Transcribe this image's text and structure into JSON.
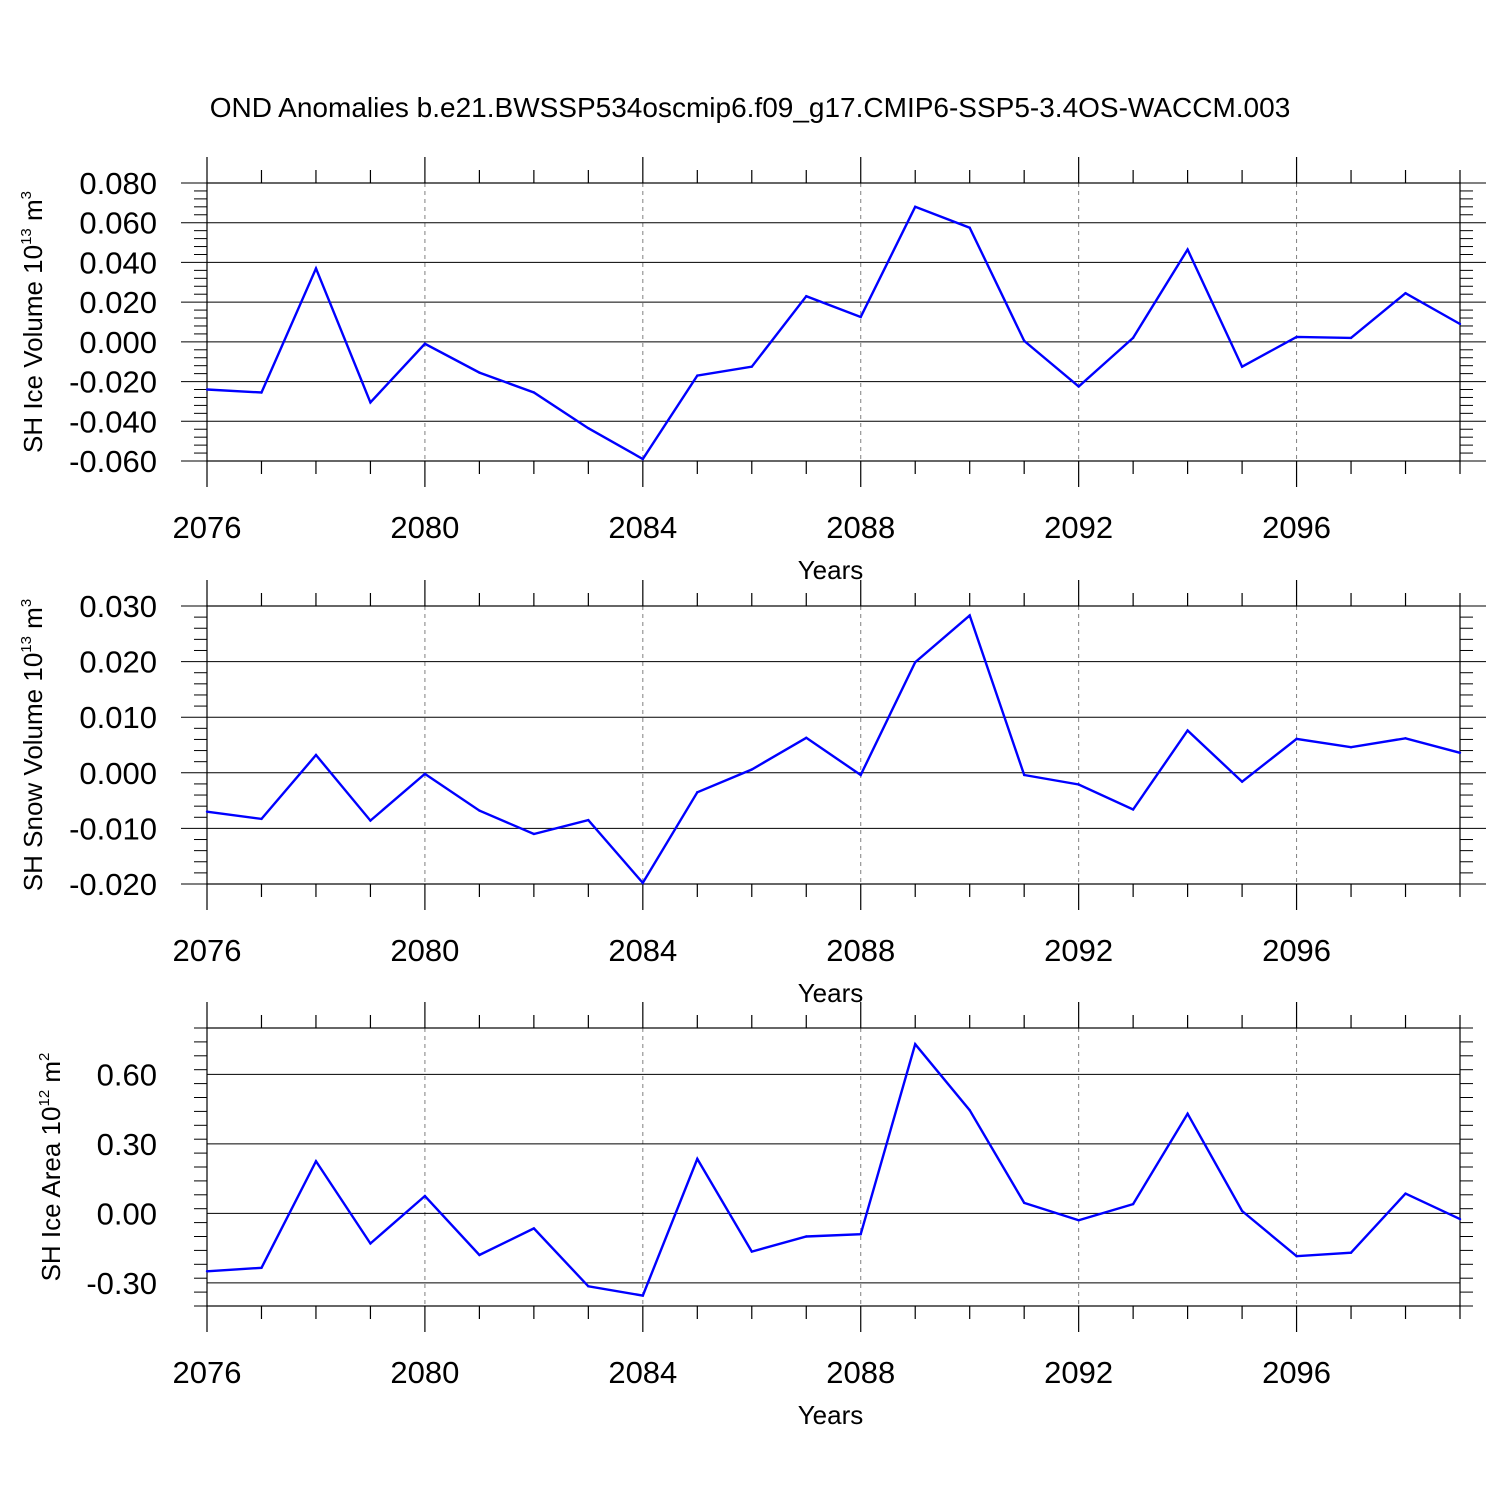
{
  "title": "OND Anomalies b.e21.BWSSP534oscmip6.f09_g17.CMIP6-SSP5-3.4OS-WACCM.003",
  "colors": {
    "line": "#0000ff",
    "axis": "#000000",
    "grid": "#808080"
  },
  "chart_data": [
    {
      "type": "line",
      "title": "",
      "xlabel": "Years",
      "ylabel": {
        "text": "SH Ice Volume 10",
        "sup": "13",
        "unit": " m",
        "unit_sup": "3"
      },
      "x": [
        2076,
        2077,
        2078,
        2079,
        2080,
        2081,
        2082,
        2083,
        2084,
        2085,
        2086,
        2087,
        2088,
        2089,
        2090,
        2091,
        2092,
        2093,
        2094,
        2095,
        2096,
        2097,
        2098,
        2099
      ],
      "values": [
        -0.024,
        -0.0255,
        0.037,
        -0.0305,
        -0.001,
        -0.0155,
        -0.0255,
        -0.0435,
        -0.059,
        -0.017,
        -0.0125,
        0.023,
        0.0125,
        0.068,
        0.0575,
        0.0005,
        -0.0225,
        0.002,
        0.0465,
        -0.0125,
        0.0025,
        0.002,
        0.0245,
        0.009
      ],
      "xlim": [
        2076,
        2099
      ],
      "ylim": [
        -0.06,
        0.08
      ],
      "xticks": [
        2076,
        2080,
        2084,
        2088,
        2092,
        2096
      ],
      "xtick_labels": [
        "2076",
        "2080",
        "2084",
        "2088",
        "2092",
        "2096"
      ],
      "yticks": [
        -0.06,
        -0.04,
        -0.02,
        0.0,
        0.02,
        0.04,
        0.06,
        0.08
      ],
      "ytick_labels": [
        "-0.060",
        "-0.040",
        "-0.020",
        "0.000",
        "0.020",
        "0.040",
        "0.060",
        "0.080"
      ],
      "grid": "x-dashed"
    },
    {
      "type": "line",
      "title": "",
      "xlabel": "Years",
      "ylabel": {
        "text": "SH Snow Volume 10",
        "sup": "13",
        "unit": " m",
        "unit_sup": "3"
      },
      "x": [
        2076,
        2077,
        2078,
        2079,
        2080,
        2081,
        2082,
        2083,
        2084,
        2085,
        2086,
        2087,
        2088,
        2089,
        2090,
        2091,
        2092,
        2093,
        2094,
        2095,
        2096,
        2097,
        2098,
        2099
      ],
      "values": [
        -0.007,
        -0.0083,
        0.0032,
        -0.0086,
        -0.0002,
        -0.0068,
        -0.011,
        -0.0085,
        -0.0198,
        -0.0035,
        0.0006,
        0.0063,
        -0.0004,
        0.0199,
        0.0283,
        -0.0004,
        -0.0021,
        -0.0066,
        0.0076,
        -0.0016,
        0.0061,
        0.0046,
        0.0062,
        0.0036
      ],
      "xlim": [
        2076,
        2099
      ],
      "ylim": [
        -0.02,
        0.03
      ],
      "xticks": [
        2076,
        2080,
        2084,
        2088,
        2092,
        2096
      ],
      "xtick_labels": [
        "2076",
        "2080",
        "2084",
        "2088",
        "2092",
        "2096"
      ],
      "yticks": [
        -0.02,
        -0.01,
        0.0,
        0.01,
        0.02,
        0.03
      ],
      "ytick_labels": [
        "-0.020",
        "-0.010",
        "0.000",
        "0.010",
        "0.020",
        "0.030"
      ],
      "grid": "x-dashed"
    },
    {
      "type": "line",
      "title": "",
      "xlabel": "Years",
      "ylabel": {
        "text": "SH Ice Area 10",
        "sup": "12",
        "unit": " m",
        "unit_sup": "2"
      },
      "x": [
        2076,
        2077,
        2078,
        2079,
        2080,
        2081,
        2082,
        2083,
        2084,
        2085,
        2086,
        2087,
        2088,
        2089,
        2090,
        2091,
        2092,
        2093,
        2094,
        2095,
        2096,
        2097,
        2098,
        2099
      ],
      "values": [
        -0.25,
        -0.235,
        0.225,
        -0.13,
        0.075,
        -0.18,
        -0.065,
        -0.315,
        -0.355,
        0.235,
        -0.165,
        -0.1,
        -0.09,
        0.73,
        0.445,
        0.045,
        -0.03,
        0.04,
        0.43,
        0.01,
        -0.185,
        -0.17,
        0.085,
        -0.025
      ],
      "xlim": [
        2076,
        2099
      ],
      "ylim": [
        -0.4,
        0.8
      ],
      "xticks": [
        2076,
        2080,
        2084,
        2088,
        2092,
        2096
      ],
      "xtick_labels": [
        "2076",
        "2080",
        "2084",
        "2088",
        "2092",
        "2096"
      ],
      "yticks": [
        -0.3,
        0.0,
        0.3,
        0.6
      ],
      "ytick_labels": [
        "-0.30",
        "0.00",
        "0.30",
        "0.60"
      ],
      "grid": "x-dashed"
    }
  ]
}
